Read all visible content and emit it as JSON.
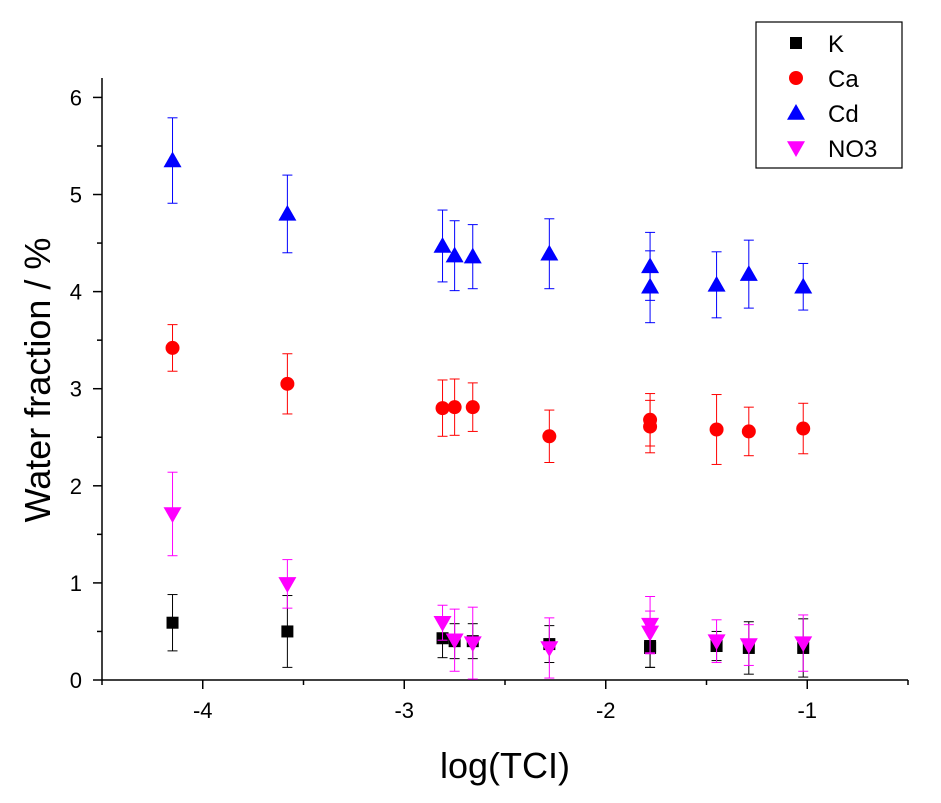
{
  "chart_data": {
    "type": "scatter",
    "title": "",
    "xlabel": "log(TCI)",
    "ylabel": "Water fraction / %",
    "xlim": [
      -4.5,
      -0.5
    ],
    "ylim": [
      0,
      6.2
    ],
    "xticks": [
      -4,
      -3,
      -2,
      -1
    ],
    "xtick_labels": [
      "-4",
      "-3",
      "-2",
      "-1"
    ],
    "yticks": [
      0,
      1,
      2,
      3,
      4,
      5,
      6
    ],
    "ytick_labels": [
      "0",
      "1",
      "2",
      "3",
      "4",
      "5",
      "6"
    ],
    "grid": false,
    "legend_position": "top-right",
    "x": [
      -4.15,
      -3.58,
      -2.81,
      -2.75,
      -2.66,
      -2.28,
      -1.78,
      -1.78,
      -1.45,
      -1.29,
      -1.02
    ],
    "series": [
      {
        "name": "K",
        "marker": "square",
        "color": "#000000",
        "values": [
          0.59,
          0.5,
          0.43,
          0.4,
          0.4,
          0.37,
          0.35,
          0.33,
          0.35,
          0.33,
          0.33
        ],
        "errors": [
          0.29,
          0.37,
          0.2,
          0.18,
          0.18,
          0.19,
          0.22,
          0.2,
          0.15,
          0.27,
          0.3
        ]
      },
      {
        "name": "Ca",
        "marker": "circle",
        "color": "#ff0000",
        "values": [
          3.42,
          3.05,
          2.8,
          2.81,
          2.81,
          2.51,
          2.68,
          2.61,
          2.58,
          2.56,
          2.59
        ],
        "errors": [
          0.24,
          0.31,
          0.29,
          0.29,
          0.25,
          0.27,
          0.27,
          0.27,
          0.36,
          0.25,
          0.26
        ]
      },
      {
        "name": "Cd",
        "marker": "triangle-up",
        "color": "#0000ff",
        "values": [
          5.35,
          4.8,
          4.47,
          4.37,
          4.36,
          4.39,
          4.26,
          4.05,
          4.07,
          4.18,
          4.05
        ],
        "errors": [
          0.44,
          0.4,
          0.37,
          0.36,
          0.33,
          0.36,
          0.35,
          0.37,
          0.34,
          0.35,
          0.24
        ]
      },
      {
        "name": "NO3",
        "marker": "triangle-down",
        "color": "#ff00ff",
        "values": [
          1.71,
          0.99,
          0.59,
          0.41,
          0.38,
          0.33,
          0.57,
          0.49,
          0.4,
          0.36,
          0.38
        ],
        "errors": [
          0.43,
          0.25,
          0.18,
          0.32,
          0.37,
          0.31,
          0.29,
          0.22,
          0.22,
          0.21,
          0.29
        ]
      }
    ]
  }
}
